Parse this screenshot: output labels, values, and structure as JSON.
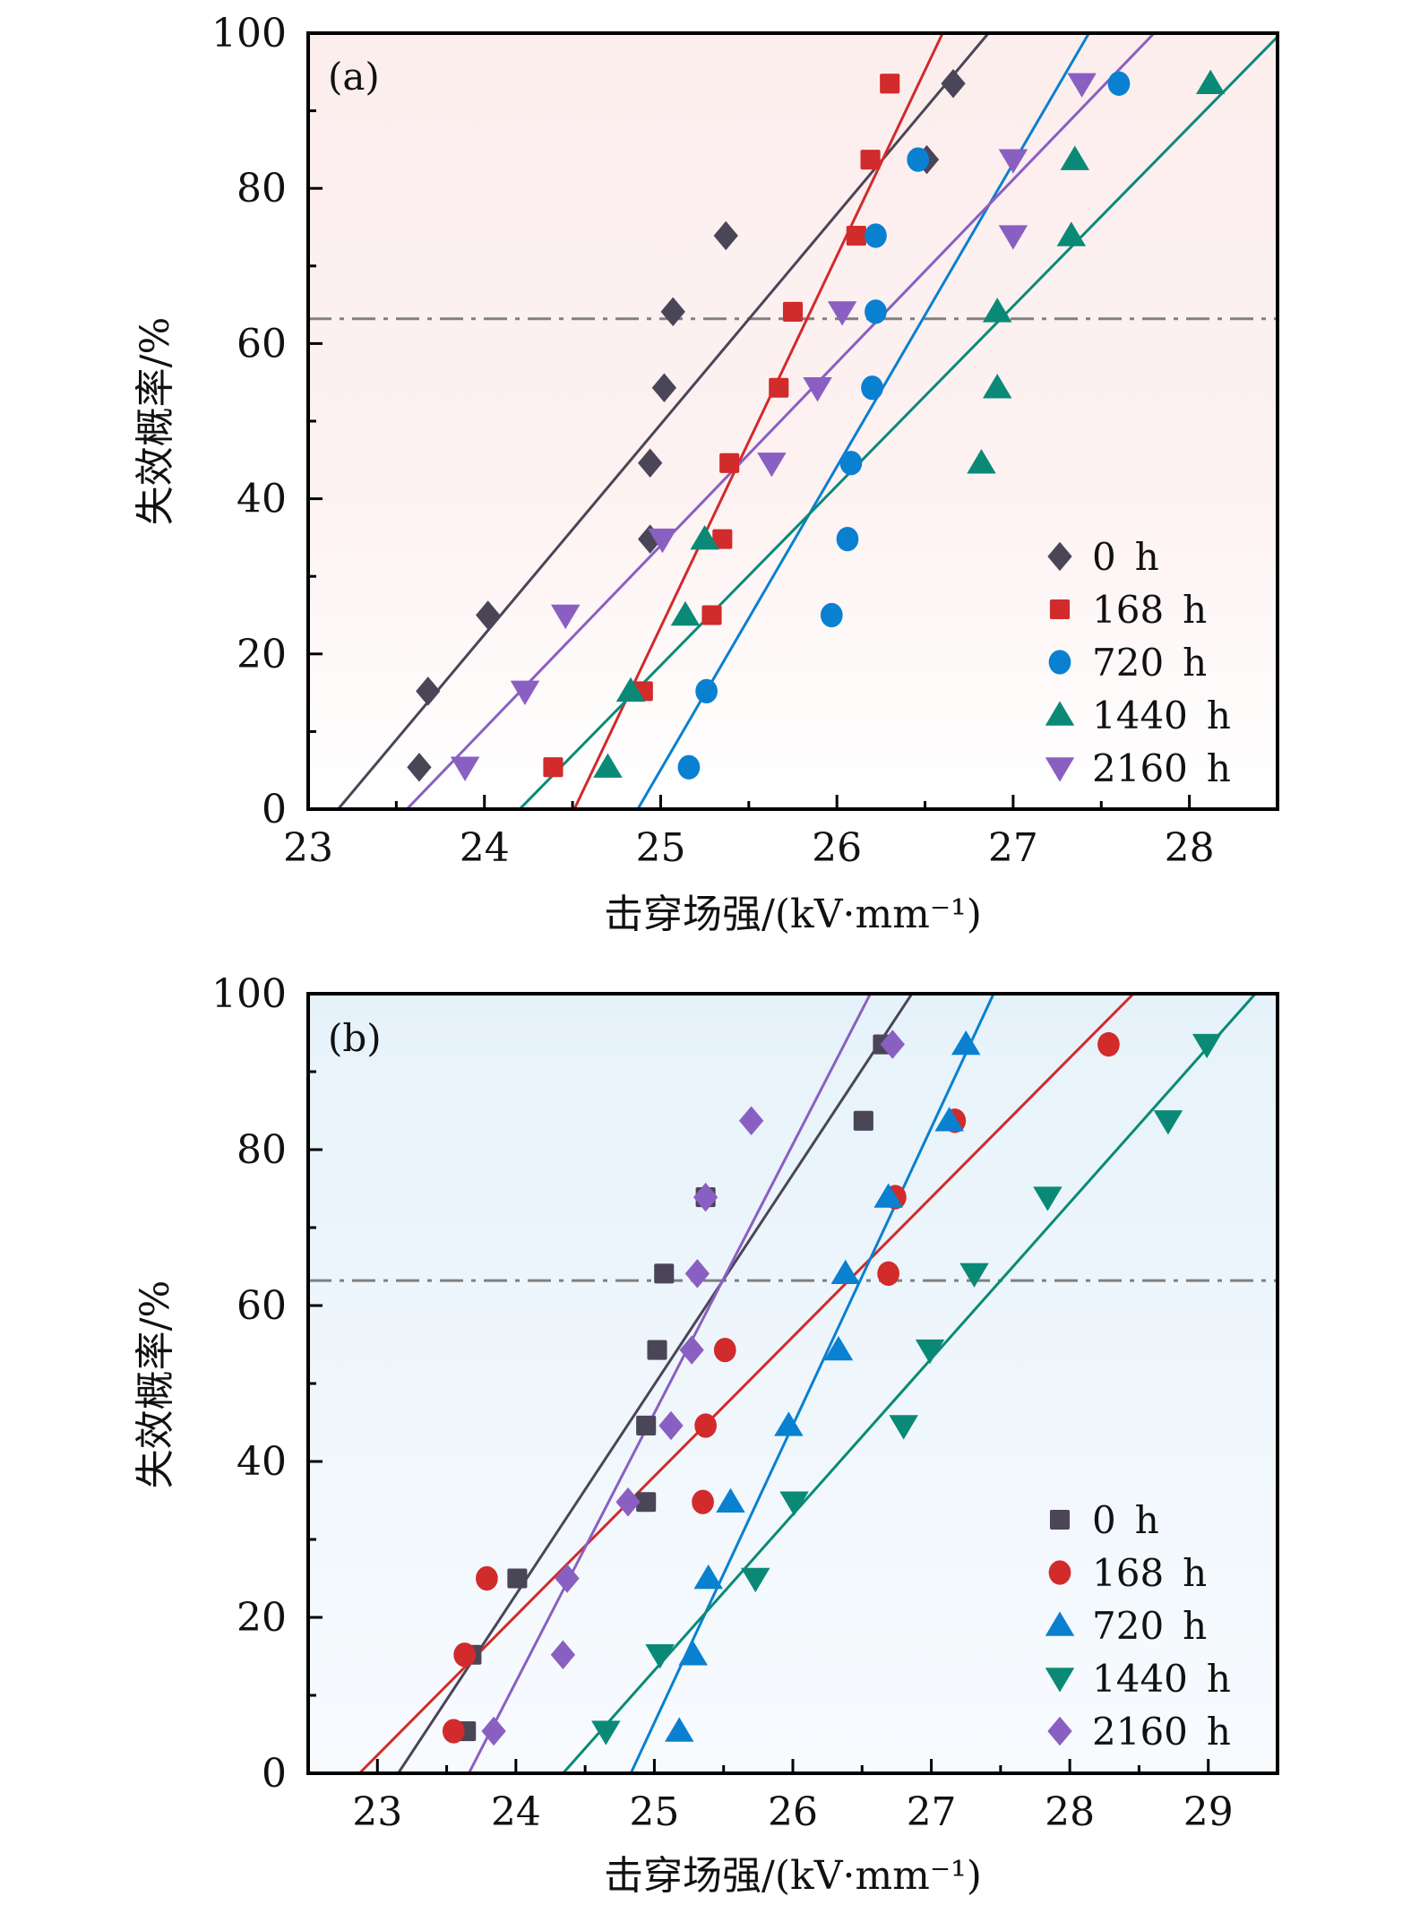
{
  "chart_data": [
    {
      "type": "scatter",
      "panel_label": "(a)",
      "xlabel": "击穿场强/(kV·mm⁻¹)",
      "ylabel": "失效概率/%",
      "xlim": [
        23,
        28.5
      ],
      "ylim": [
        0,
        100
      ],
      "xticks": [
        23,
        24,
        25,
        26,
        27,
        28
      ],
      "yticks": [
        0,
        20,
        40,
        60,
        80,
        100
      ],
      "reference_line": {
        "y": 63.2,
        "style": "dash-dot",
        "color": "#808080"
      },
      "background": {
        "top": "#fdeeee",
        "bottom": "#ffffff"
      },
      "legend_position": "bottom-right",
      "series": [
        {
          "name": "0 h",
          "marker": "diamond",
          "color": "#4a4657",
          "x": [
            23.63,
            23.68,
            24.02,
            24.94,
            24.94,
            25.02,
            25.07,
            25.37,
            26.51,
            26.66
          ],
          "y": [
            5.4,
            15.2,
            25.0,
            34.8,
            44.6,
            54.3,
            64.1,
            73.9,
            83.7,
            93.5
          ],
          "fit": {
            "x_at_0": 23.17,
            "x_at_100": 26.86
          }
        },
        {
          "name": "168 h",
          "marker": "square",
          "color": "#d12b2b",
          "x": [
            24.39,
            24.9,
            25.29,
            25.35,
            25.39,
            25.67,
            25.75,
            26.11,
            26.19,
            26.3
          ],
          "y": [
            5.4,
            15.2,
            25.0,
            34.8,
            44.6,
            54.3,
            64.1,
            73.9,
            83.7,
            93.5
          ],
          "fit": {
            "x_at_0": 24.51,
            "x_at_100": 26.6
          }
        },
        {
          "name": "720 h",
          "marker": "circle",
          "color": "#0a80d0",
          "x": [
            25.16,
            25.26,
            25.97,
            26.06,
            26.08,
            26.2,
            26.22,
            26.22,
            26.46,
            27.6
          ],
          "y": [
            5.4,
            15.2,
            25.0,
            34.8,
            44.6,
            54.3,
            64.1,
            73.9,
            83.7,
            93.5
          ],
          "fit": {
            "x_at_0": 24.87,
            "x_at_100": 27.43
          }
        },
        {
          "name": "1440 h",
          "marker": "triangle-up",
          "color": "#0a8a76",
          "x": [
            24.7,
            24.83,
            25.14,
            25.25,
            26.82,
            26.91,
            26.91,
            27.33,
            27.35,
            28.12
          ],
          "y": [
            5.4,
            15.2,
            25.0,
            34.8,
            44.6,
            54.3,
            64.1,
            73.9,
            83.7,
            93.5
          ],
          "fit": {
            "x_at_0": 24.2,
            "x_at_100": 28.52
          }
        },
        {
          "name": "2160 h",
          "marker": "triangle-down",
          "color": "#8a5fc2",
          "x": [
            23.89,
            24.23,
            24.46,
            25.01,
            25.63,
            25.89,
            26.03,
            27.0,
            27.0,
            27.39
          ],
          "y": [
            5.4,
            15.2,
            25.0,
            34.8,
            44.6,
            54.3,
            64.1,
            73.9,
            83.7,
            93.5
          ],
          "fit": {
            "x_at_0": 23.56,
            "x_at_100": 27.8
          }
        }
      ]
    },
    {
      "type": "scatter",
      "panel_label": "(b)",
      "xlabel": "击穿场强/(kV·mm⁻¹)",
      "ylabel": "失效概率/%",
      "xlim": [
        22.5,
        29.5
      ],
      "ylim": [
        0,
        100
      ],
      "xticks": [
        23,
        24,
        25,
        26,
        27,
        28,
        29
      ],
      "yticks": [
        0,
        20,
        40,
        60,
        80,
        100
      ],
      "reference_line": {
        "y": 63.2,
        "style": "dash-dot",
        "color": "#808080"
      },
      "background": {
        "top": "#e6f2fa",
        "bottom": "#f8fbfe"
      },
      "legend_position": "bottom-right",
      "series": [
        {
          "name": "0 h",
          "marker": "square",
          "color": "#4a4657",
          "x": [
            23.64,
            23.68,
            24.01,
            24.94,
            24.94,
            25.02,
            25.07,
            25.37,
            26.51,
            26.65
          ],
          "y": [
            5.4,
            15.2,
            25.0,
            34.8,
            44.6,
            54.3,
            64.1,
            73.9,
            83.7,
            93.5
          ],
          "fit": {
            "x_at_0": 23.15,
            "x_at_100": 26.86
          }
        },
        {
          "name": "168 h",
          "marker": "circle",
          "color": "#d12b2b",
          "x": [
            23.55,
            23.63,
            23.79,
            25.35,
            25.37,
            25.51,
            26.69,
            26.74,
            27.17,
            28.28
          ],
          "y": [
            5.4,
            15.2,
            25.0,
            34.8,
            44.6,
            54.3,
            64.1,
            73.9,
            83.7,
            93.5
          ],
          "fit": {
            "x_at_0": 22.87,
            "x_at_100": 28.46
          }
        },
        {
          "name": "720 h",
          "marker": "triangle-up",
          "color": "#0a80d0",
          "x": [
            25.18,
            25.28,
            25.39,
            25.55,
            25.97,
            26.33,
            26.38,
            26.69,
            27.13,
            27.25
          ],
          "y": [
            5.4,
            15.2,
            25.0,
            34.8,
            44.6,
            54.3,
            64.1,
            73.9,
            83.7,
            93.5
          ],
          "fit": {
            "x_at_0": 24.83,
            "x_at_100": 27.45
          }
        },
        {
          "name": "1440 h",
          "marker": "triangle-down",
          "color": "#0a8a76",
          "x": [
            24.65,
            25.04,
            25.73,
            26.01,
            26.8,
            26.99,
            27.31,
            27.84,
            28.71,
            28.99
          ],
          "y": [
            5.4,
            15.2,
            25.0,
            34.8,
            44.6,
            54.3,
            64.1,
            73.9,
            83.7,
            93.5
          ],
          "fit": {
            "x_at_0": 24.34,
            "x_at_100": 29.34
          }
        },
        {
          "name": "2160 h",
          "marker": "diamond",
          "color": "#8a5fc2",
          "x": [
            23.84,
            24.34,
            24.37,
            24.81,
            25.12,
            25.27,
            25.31,
            25.37,
            25.7,
            26.72
          ],
          "y": [
            5.4,
            15.2,
            25.0,
            34.8,
            44.6,
            54.3,
            64.1,
            73.9,
            83.7,
            93.5
          ],
          "fit": {
            "x_at_0": 23.66,
            "x_at_100": 26.56
          }
        }
      ]
    }
  ]
}
